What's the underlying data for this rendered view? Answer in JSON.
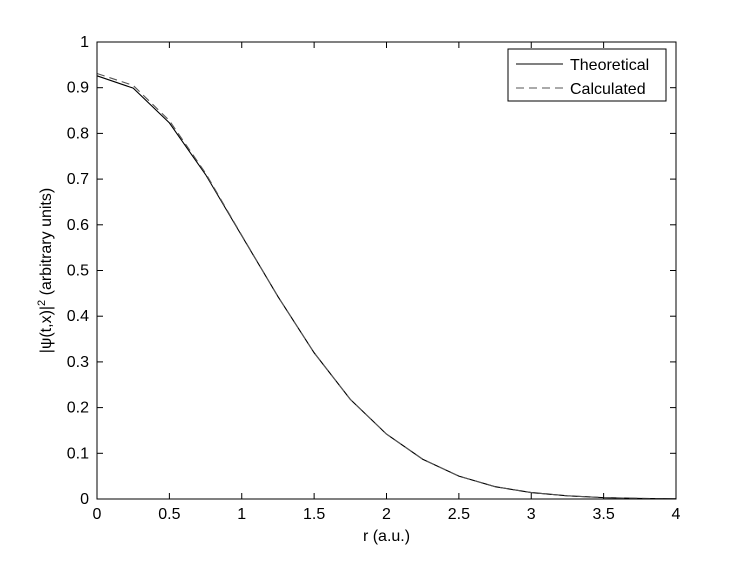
{
  "chart_data": {
    "type": "line",
    "title": "",
    "xlabel": "r (a.u.)",
    "ylabel": {
      "pre": "|ψ(t,x)|",
      "sup": "2",
      "post": " (arbitrary units)"
    },
    "xlim": [
      0,
      4
    ],
    "ylim": [
      0,
      1
    ],
    "xticks": [
      0,
      0.5,
      1,
      1.5,
      2,
      2.5,
      3,
      3.5,
      4
    ],
    "xtick_labels": [
      "0",
      "0.5",
      "1",
      "1.5",
      "2",
      "2.5",
      "3",
      "3.5",
      "4"
    ],
    "yticks": [
      0,
      0.1,
      0.2,
      0.3,
      0.4,
      0.5,
      0.6,
      0.7,
      0.8,
      0.9,
      1
    ],
    "ytick_labels": [
      "0",
      "0.1",
      "0.2",
      "0.3",
      "0.4",
      "0.5",
      "0.6",
      "0.7",
      "0.8",
      "0.9",
      "1"
    ],
    "grid": false,
    "legend_position": "top-right",
    "series": [
      {
        "name": "Theoretical",
        "style": "solid",
        "color": "#000000",
        "x": [
          0,
          0.25,
          0.5,
          0.75,
          1.0,
          1.25,
          1.5,
          1.75,
          2.0,
          2.25,
          2.5,
          2.75,
          3.0,
          3.25,
          3.5,
          3.75,
          4.0
        ],
        "y": [
          0.926,
          0.899,
          0.823,
          0.71,
          0.576,
          0.443,
          0.32,
          0.218,
          0.142,
          0.087,
          0.05,
          0.027,
          0.014,
          0.007,
          0.003,
          0.0013,
          0.0005
        ]
      },
      {
        "name": "Calculated",
        "style": "dashed",
        "color": "#555555",
        "x": [
          0,
          0.25,
          0.5,
          0.75,
          1.0,
          1.25,
          1.5,
          1.75,
          2.0,
          2.25,
          2.5,
          2.75,
          3.0,
          3.25,
          3.5,
          3.75,
          4.0
        ],
        "y": [
          0.931,
          0.905,
          0.828,
          0.713,
          0.577,
          0.443,
          0.32,
          0.218,
          0.142,
          0.087,
          0.05,
          0.027,
          0.014,
          0.007,
          0.003,
          0.0013,
          0.0005
        ]
      }
    ]
  }
}
